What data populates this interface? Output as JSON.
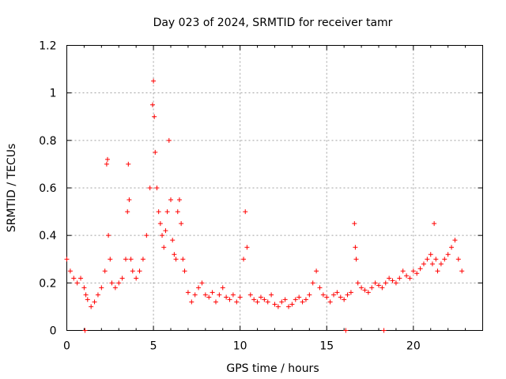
{
  "chart_data": {
    "type": "scatter",
    "title": "Day 023 of 2024, SRMTID for receiver tamr",
    "xlabel": "GPS time / hours",
    "ylabel": "SRMTID / TECUs",
    "xlim": [
      0,
      24
    ],
    "ylim": [
      0,
      1.2
    ],
    "x_ticks": [
      0,
      5,
      10,
      15,
      20
    ],
    "x_tick_labels": [
      "0",
      "5",
      "10",
      "15",
      "20"
    ],
    "y_ticks": [
      0,
      0.2,
      0.4,
      0.6,
      0.8,
      1,
      1.2
    ],
    "y_tick_labels": [
      "0",
      "0.2",
      "0.4",
      "0.6",
      "0.8",
      "1",
      "1.2"
    ],
    "grid": true,
    "marker": "+",
    "color": "#ff0000",
    "series": [
      {
        "name": "SRMTID",
        "x": [
          0.0,
          0.2,
          0.4,
          0.6,
          0.8,
          1.0,
          1.1,
          1.2,
          1.4,
          1.6,
          1.8,
          2.0,
          2.2,
          2.3,
          2.35,
          2.4,
          2.5,
          2.6,
          2.8,
          3.0,
          3.2,
          3.4,
          3.5,
          3.55,
          3.6,
          3.7,
          3.8,
          4.0,
          4.2,
          4.4,
          4.6,
          4.8,
          4.95,
          5.0,
          5.05,
          5.1,
          5.2,
          5.3,
          5.4,
          5.5,
          5.6,
          5.7,
          5.8,
          5.9,
          6.0,
          6.1,
          6.2,
          6.3,
          6.4,
          6.5,
          6.6,
          6.7,
          6.8,
          7.0,
          7.2,
          7.4,
          7.6,
          7.8,
          8.0,
          8.2,
          8.4,
          8.6,
          8.8,
          9.0,
          9.2,
          9.4,
          9.6,
          9.8,
          10.0,
          10.2,
          10.3,
          10.4,
          10.6,
          10.8,
          11.0,
          11.2,
          11.4,
          11.6,
          11.8,
          12.0,
          12.2,
          12.4,
          12.6,
          12.8,
          13.0,
          13.2,
          13.4,
          13.6,
          13.8,
          14.0,
          14.2,
          14.4,
          14.6,
          14.8,
          15.0,
          15.2,
          15.4,
          15.6,
          15.8,
          16.0,
          16.2,
          16.4,
          16.6,
          16.65,
          16.7,
          16.8,
          17.0,
          17.2,
          17.4,
          17.6,
          17.8,
          18.0,
          18.2,
          18.4,
          18.6,
          18.8,
          19.0,
          19.2,
          19.4,
          19.6,
          19.8,
          20.0,
          20.2,
          20.4,
          20.6,
          20.8,
          21.0,
          21.1,
          21.2,
          21.3,
          21.4,
          21.6,
          21.8,
          22.0,
          22.2,
          22.4,
          22.6,
          22.8,
          1.05,
          16.1,
          18.3
        ],
        "y": [
          0.3,
          0.25,
          0.22,
          0.2,
          0.22,
          0.18,
          0.15,
          0.13,
          0.1,
          0.12,
          0.15,
          0.18,
          0.25,
          0.7,
          0.72,
          0.4,
          0.3,
          0.2,
          0.18,
          0.2,
          0.22,
          0.3,
          0.5,
          0.7,
          0.55,
          0.3,
          0.25,
          0.22,
          0.25,
          0.3,
          0.4,
          0.6,
          0.95,
          1.05,
          0.9,
          0.75,
          0.6,
          0.5,
          0.45,
          0.4,
          0.35,
          0.42,
          0.5,
          0.8,
          0.55,
          0.38,
          0.32,
          0.3,
          0.5,
          0.55,
          0.45,
          0.3,
          0.25,
          0.16,
          0.12,
          0.15,
          0.18,
          0.2,
          0.15,
          0.14,
          0.16,
          0.12,
          0.15,
          0.18,
          0.14,
          0.13,
          0.15,
          0.12,
          0.14,
          0.3,
          0.5,
          0.35,
          0.15,
          0.13,
          0.12,
          0.14,
          0.13,
          0.12,
          0.15,
          0.11,
          0.1,
          0.12,
          0.13,
          0.1,
          0.11,
          0.13,
          0.14,
          0.12,
          0.13,
          0.15,
          0.2,
          0.25,
          0.18,
          0.15,
          0.14,
          0.12,
          0.15,
          0.16,
          0.14,
          0.13,
          0.15,
          0.16,
          0.45,
          0.35,
          0.3,
          0.2,
          0.18,
          0.17,
          0.16,
          0.18,
          0.2,
          0.19,
          0.18,
          0.2,
          0.22,
          0.21,
          0.2,
          0.22,
          0.25,
          0.23,
          0.22,
          0.25,
          0.24,
          0.26,
          0.28,
          0.3,
          0.32,
          0.28,
          0.45,
          0.3,
          0.25,
          0.28,
          0.3,
          0.32,
          0.35,
          0.38,
          0.3,
          0.25,
          0.0,
          0.0,
          0.0
        ]
      }
    ]
  }
}
